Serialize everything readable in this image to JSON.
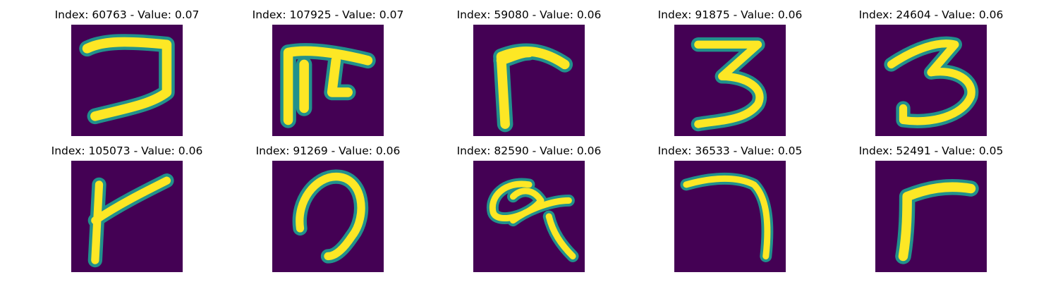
{
  "colors": {
    "background": "#440154",
    "stroke_core": "#fde725",
    "stroke_edge": "#21918c"
  },
  "panels": [
    {
      "title": "Index: 60763 - Value: 0.07",
      "index": 60763,
      "value": 0.07
    },
    {
      "title": "Index: 107925 - Value: 0.07",
      "index": 107925,
      "value": 0.07
    },
    {
      "title": "Index: 59080 - Value: 0.06",
      "index": 59080,
      "value": 0.06
    },
    {
      "title": "Index: 91875 - Value: 0.06",
      "index": 91875,
      "value": 0.06
    },
    {
      "title": "Index: 24604 - Value: 0.06",
      "index": 24604,
      "value": 0.06
    },
    {
      "title": "Index: 105073 - Value: 0.06",
      "index": 105073,
      "value": 0.06
    },
    {
      "title": "Index: 91269 - Value: 0.06",
      "index": 91269,
      "value": 0.06
    },
    {
      "title": "Index: 82590 - Value: 0.06",
      "index": 82590,
      "value": 0.06
    },
    {
      "title": "Index: 36533 - Value: 0.05",
      "index": 36533,
      "value": 0.05
    },
    {
      "title": "Index: 52491 - Value: 0.05",
      "index": 52491,
      "value": 0.05
    }
  ]
}
